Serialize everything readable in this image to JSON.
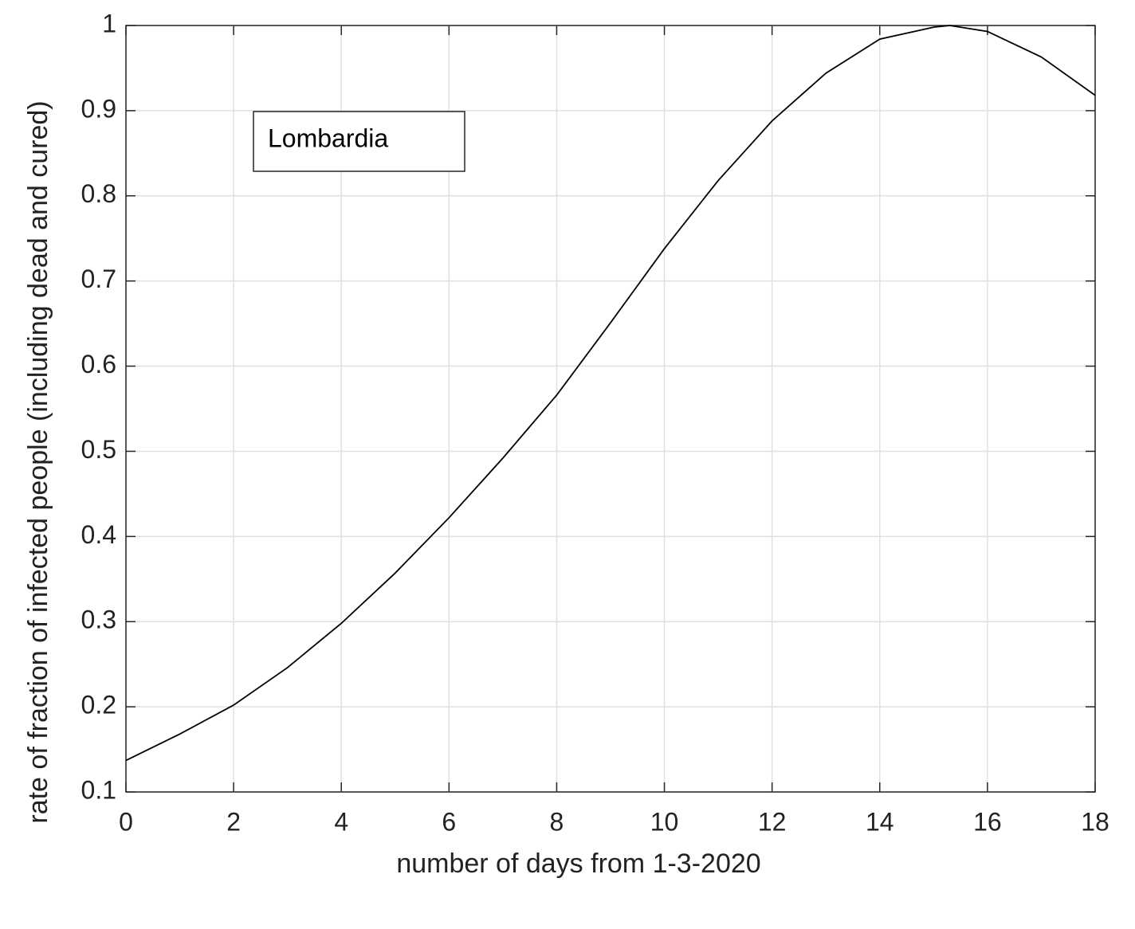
{
  "chart_data": {
    "type": "line",
    "x_label": "number of days from 1-3-2020",
    "y_label": "rate of fraction of infected people (including dead and cured)",
    "x": [
      0,
      1,
      2,
      3,
      4,
      5,
      6,
      7,
      8,
      9,
      10,
      11,
      12,
      13,
      14,
      15,
      15.3,
      16,
      17,
      18
    ],
    "series": [
      {
        "name": "Lombardia",
        "color": "#000000",
        "values": [
          0.137,
          0.168,
          0.202,
          0.246,
          0.298,
          0.357,
          0.422,
          0.492,
          0.566,
          0.651,
          0.738,
          0.818,
          0.888,
          0.944,
          0.984,
          0.998,
          1.0,
          0.993,
          0.963,
          0.918
        ]
      }
    ],
    "xlim": [
      0,
      18
    ],
    "xticks": [
      0,
      2,
      4,
      6,
      8,
      10,
      12,
      14,
      16,
      18
    ],
    "ylim": [
      0.1,
      1
    ],
    "yticks": [
      0.1,
      0.2,
      0.3,
      0.4,
      0.5,
      0.6,
      0.7,
      0.8,
      0.9,
      1
    ],
    "grid": true,
    "legend": "upper left"
  }
}
